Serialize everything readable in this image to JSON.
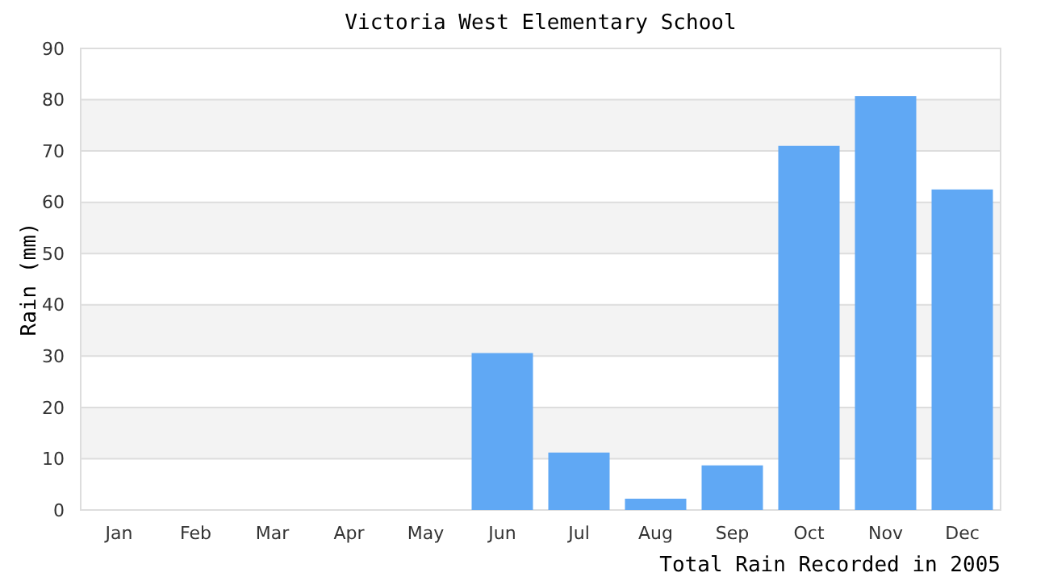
{
  "chart_data": {
    "type": "bar",
    "title": "Victoria West Elementary School",
    "xlabel": "Total Rain Recorded in 2005",
    "ylabel": "Rain (mm)",
    "categories": [
      "Jan",
      "Feb",
      "Mar",
      "Apr",
      "May",
      "Jun",
      "Jul",
      "Aug",
      "Sep",
      "Oct",
      "Nov",
      "Dec"
    ],
    "values": [
      0,
      0,
      0,
      0,
      0,
      30.6,
      11.2,
      2.2,
      8.7,
      71.0,
      80.7,
      62.5
    ],
    "color": "#60a8f4",
    "ylim": [
      0,
      90
    ],
    "yticks": [
      0,
      10,
      20,
      30,
      40,
      50,
      60,
      70,
      80,
      90
    ],
    "grid": "y"
  }
}
